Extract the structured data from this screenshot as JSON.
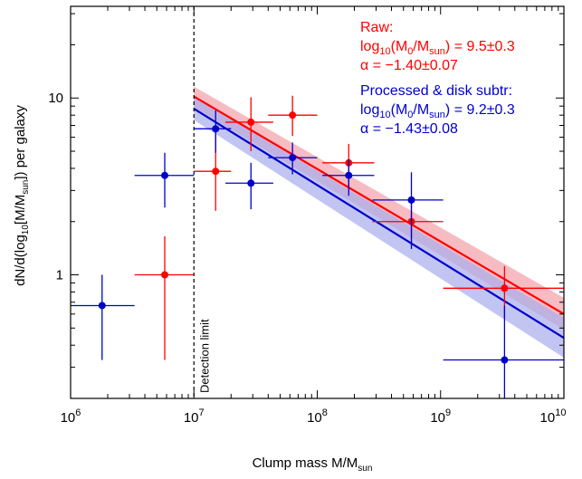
{
  "chart_data": {
    "type": "scatter",
    "title": "",
    "xlabel": "Clump mass M/M",
    "xlabel_sub": "sun",
    "ylabel_parts": [
      "dN/d(log",
      "10",
      "[M/M",
      "sun",
      "]) per galaxy"
    ],
    "xscale": "log",
    "yscale": "log",
    "xlim": [
      1000000,
      10000000000
    ],
    "ylim": [
      0.2,
      33
    ],
    "grid": false,
    "x_tick_labels": [
      {
        "value": 1000000,
        "base": "10",
        "exp": "6"
      },
      {
        "value": 10000000,
        "base": "10",
        "exp": "7"
      },
      {
        "value": 100000000,
        "base": "10",
        "exp": "8"
      },
      {
        "value": 1000000000,
        "base": "10",
        "exp": "9"
      },
      {
        "value": 10000000000,
        "base": "10",
        "exp": "10"
      }
    ],
    "y_tick_labels": [
      {
        "value": 1,
        "label": "1"
      },
      {
        "value": 10,
        "label": "10"
      }
    ],
    "detection_limit": {
      "x": 10000000,
      "label": "Detection limit"
    },
    "legend_position": "top-right",
    "series": [
      {
        "name": "Raw",
        "color": "#ff0000",
        "points": [
          {
            "x": 5800000,
            "y": 1.0,
            "xlo": 3300000,
            "xhi": 10000000,
            "ylo": 0.33,
            "yhi": 1.65
          },
          {
            "x": 15000000,
            "y": 3.85,
            "xlo": 10000000,
            "xhi": 20000000,
            "ylo": 2.3,
            "yhi": 6.3
          },
          {
            "x": 29000000,
            "y": 7.3,
            "xlo": 18000000,
            "xhi": 44000000,
            "ylo": 5.0,
            "yhi": 10.1
          },
          {
            "x": 63000000,
            "y": 8.0,
            "xlo": 40000000,
            "xhi": 100000000,
            "ylo": 6.1,
            "yhi": 10.3
          },
          {
            "x": 180000000,
            "y": 4.3,
            "xlo": 110000000,
            "xhi": 290000000,
            "ylo": 3.1,
            "yhi": 5.5
          },
          {
            "x": 580000000,
            "y": 2.0,
            "xlo": 280000000,
            "xhi": 1050000000,
            "ylo": 1.45,
            "yhi": 2.55
          },
          {
            "x": 3300000000,
            "y": 0.84,
            "xlo": 1050000000,
            "xhi": 10000000000,
            "ylo": 0.57,
            "yhi": 1.12
          }
        ],
        "fit": {
          "x": [
            10000000,
            10000000000
          ],
          "y": [
            10.2,
            0.6
          ],
          "band_lo": [
            8.9,
            0.49
          ],
          "band_hi": [
            11.6,
            0.74
          ]
        }
      },
      {
        "name": "Processed & disk subtr",
        "color": "#0000cc",
        "points": [
          {
            "x": 1800000,
            "y": 0.67,
            "xlo": 1000000,
            "xhi": 3300000,
            "ylo": 0.33,
            "yhi": 1.0
          },
          {
            "x": 5800000,
            "y": 3.65,
            "xlo": 3300000,
            "xhi": 10000000,
            "ylo": 2.4,
            "yhi": 4.9
          },
          {
            "x": 15000000,
            "y": 6.7,
            "xlo": 10000000,
            "xhi": 20000000,
            "ylo": 4.9,
            "yhi": 8.5
          },
          {
            "x": 29000000,
            "y": 3.3,
            "xlo": 18000000,
            "xhi": 44000000,
            "ylo": 2.35,
            "yhi": 4.3
          },
          {
            "x": 63000000,
            "y": 4.6,
            "xlo": 40000000,
            "xhi": 100000000,
            "ylo": 3.7,
            "yhi": 5.6
          },
          {
            "x": 180000000,
            "y": 3.65,
            "xlo": 110000000,
            "xhi": 290000000,
            "ylo": 2.8,
            "yhi": 4.5
          },
          {
            "x": 580000000,
            "y": 2.65,
            "xlo": 280000000,
            "xhi": 1050000000,
            "ylo": 1.4,
            "yhi": 3.8
          },
          {
            "x": 3300000000,
            "y": 0.33,
            "xlo": 1050000000,
            "xhi": 10000000000,
            "ylo": 0.2,
            "yhi": 0.67
          }
        ],
        "fit": {
          "x": [
            10000000,
            10000000000
          ],
          "y": [
            8.7,
            0.44
          ],
          "band_lo": [
            7.5,
            0.34
          ],
          "band_hi": [
            10.1,
            0.57
          ]
        }
      }
    ],
    "legend": {
      "raw": {
        "title": "Raw:",
        "m0_pre": "log",
        "m0_sub1": "10",
        "m0_mid": "(M",
        "m0_sub2": "0",
        "m0_mid2": "/M",
        "m0_sub3": "sun",
        "m0_value": ") = 9.5±0.3",
        "alpha": "α = −1.40±0.07"
      },
      "processed": {
        "title": "Processed & disk subtr:",
        "m0_pre": "log",
        "m0_sub1": "10",
        "m0_mid": "(M",
        "m0_sub2": "0",
        "m0_mid2": "/M",
        "m0_sub3": "sun",
        "m0_value": ") = 9.2±0.3",
        "alpha": "α = −1.43±0.08"
      }
    }
  },
  "colors": {
    "raw": "#ff0000",
    "raw_band": "#f2a0a8",
    "processed": "#0000cc",
    "processed_band": "#a8acec",
    "axis": "#000000"
  }
}
